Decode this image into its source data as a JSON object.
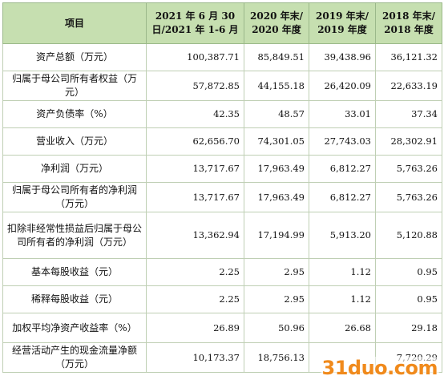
{
  "table": {
    "header": {
      "item": "项目",
      "col1": "2021 年 6 月 30 日/2021 年 1-6 月",
      "col2": "2020 年末/ 2020 年度",
      "col3": "2019 年末/ 2019 年度",
      "col4": "2018 年末/ 2018 年度"
    },
    "rows": [
      {
        "label": "资产总额（万元）",
        "values": [
          "100,387.71",
          "85,849.51",
          "39,438.96",
          "36,121.32"
        ]
      },
      {
        "label": "归属于母公司所有者权益（万元）",
        "values": [
          "57,872.85",
          "44,155.18",
          "26,420.09",
          "22,633.19"
        ]
      },
      {
        "label": "资产负债率（%）",
        "values": [
          "42.35",
          "48.57",
          "33.01",
          "37.34"
        ]
      },
      {
        "label": "营业收入（万元）",
        "values": [
          "62,656.70",
          "74,301.05",
          "27,743.03",
          "28,302.91"
        ]
      },
      {
        "label": "净利润（万元）",
        "values": [
          "13,717.67",
          "17,963.49",
          "6,812.27",
          "5,763.26"
        ]
      },
      {
        "label": "归属于母公司所有者的净利润（万元）",
        "values": [
          "13,717.67",
          "17,963.49",
          "6,812.27",
          "5,763.26"
        ]
      },
      {
        "label": "扣除非经常性损益后归属于母公司所有者的净利润（万元）",
        "values": [
          "13,362.94",
          "17,194.99",
          "5,913.20",
          "5,120.88"
        ]
      },
      {
        "label": "基本每股收益（元）",
        "values": [
          "2.25",
          "2.95",
          "1.12",
          "0.95"
        ]
      },
      {
        "label": "稀释每股收益（元）",
        "values": [
          "2.25",
          "2.95",
          "1.12",
          "0.95"
        ]
      },
      {
        "label": "加权平均净资产收益率（%）",
        "values": [
          "26.89",
          "50.96",
          "26.68",
          "29.18"
        ]
      },
      {
        "label": "经营活动产生的现金流量净额（万元）",
        "values": [
          "10,173.37",
          "18,756.13",
          "",
          "7,720.29"
        ]
      }
    ]
  },
  "watermark": "31duo.com"
}
